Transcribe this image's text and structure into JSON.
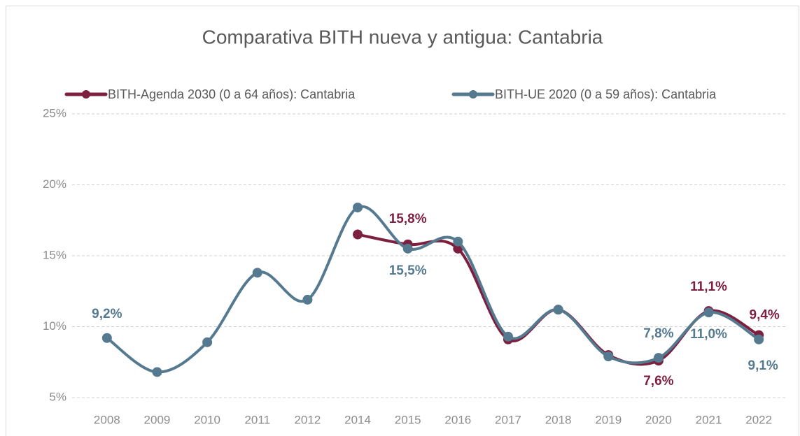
{
  "chart_data": {
    "type": "line",
    "title": "Comparativa BITH nueva y antigua: Cantabria",
    "categories": [
      "2008",
      "2009",
      "2010",
      "2011",
      "2012",
      "2014",
      "2015",
      "2016",
      "2017",
      "2018",
      "2019",
      "2020",
      "2021",
      "2022"
    ],
    "series": [
      {
        "name": "BITH-Agenda 2030 (0 a 64 años): Cantabria",
        "color": "#7d1f3f",
        "values": [
          null,
          null,
          null,
          null,
          null,
          16.5,
          15.8,
          15.5,
          9.1,
          11.2,
          8.0,
          7.6,
          11.1,
          9.4
        ],
        "value_labels": [
          null,
          null,
          null,
          null,
          null,
          null,
          "15,8%",
          null,
          null,
          null,
          null,
          "7,6%",
          "11,1%",
          "9,4%"
        ]
      },
      {
        "name": "BITH-UE 2020 (0 a 59 años): Cantabria",
        "color": "#557a8f",
        "values": [
          9.2,
          6.8,
          8.9,
          13.8,
          11.9,
          18.4,
          15.5,
          16.0,
          9.3,
          11.2,
          7.9,
          7.8,
          11.0,
          9.1
        ],
        "value_labels": [
          "9,2%",
          null,
          null,
          null,
          null,
          null,
          "15,5%",
          null,
          null,
          null,
          null,
          "7,8%",
          "11,0%",
          "9,1%"
        ]
      }
    ],
    "ylim": [
      5,
      25
    ],
    "yticks": [
      {
        "value": 5,
        "label": "5%"
      },
      {
        "value": 10,
        "label": "10%"
      },
      {
        "value": 15,
        "label": "15%"
      },
      {
        "value": 20,
        "label": "20%"
      },
      {
        "value": 25,
        "label": "25%"
      }
    ],
    "grid": true,
    "legend": "top"
  }
}
